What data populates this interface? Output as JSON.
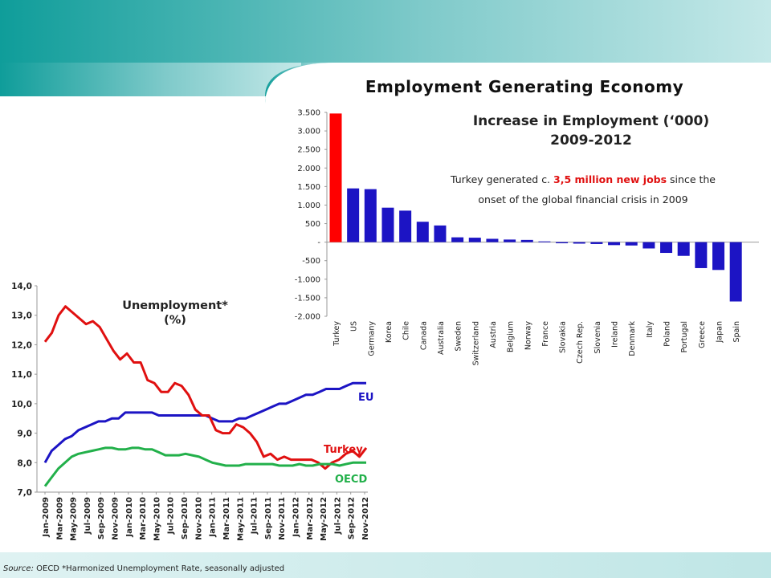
{
  "slide": {
    "title": "Employment Generating Economy",
    "source_label": "Source:",
    "source_text": "OECD *Harmonized Unemployment Rate, seasonally adjusted",
    "colors": {
      "header_teal": "#0f9d9a",
      "header_light": "#bfe6e6"
    }
  },
  "chart_data": [
    {
      "type": "bar",
      "title": "Increase in Employment (‘000)",
      "subtitle": "2009-2012",
      "annotation": {
        "pre": "Turkey generated c. ",
        "highlight": "3,5 million new jobs",
        "post": " since the",
        "line2": "onset of the global financial crisis in 2009"
      },
      "categories": [
        "Turkey",
        "US",
        "Germany",
        "Korea",
        "Chile",
        "Canada",
        "Australia",
        "Sweden",
        "Switzerland",
        "Austria",
        "Belgium",
        "Norway",
        "France",
        "Slovakia",
        "Czech Rep.",
        "Slovenia",
        "Ireland",
        "Denmark",
        "Italy",
        "Poland",
        "Portugal",
        "Greece",
        "Japan",
        "Spain"
      ],
      "values": [
        3470,
        1450,
        1430,
        930,
        850,
        550,
        450,
        130,
        120,
        90,
        70,
        60,
        20,
        -30,
        -40,
        -50,
        -80,
        -90,
        -170,
        -290,
        -370,
        -700,
        -750,
        -1600
      ],
      "ylim": [
        -2000,
        3500
      ],
      "yticks": [
        3500,
        3000,
        2500,
        2000,
        1500,
        1000,
        500,
        0,
        -500,
        -1000,
        -1500,
        -2000
      ],
      "ytick_labels": [
        "3.500",
        "3.000",
        "2.500",
        "2.000",
        "1.500",
        "1.000",
        "500",
        "-",
        "-500",
        "-1.000",
        "-1.500",
        "-2.000"
      ],
      "colors": {
        "highlight": "#ff0000",
        "default": "#1c14c4"
      }
    },
    {
      "type": "line",
      "title": "Unemployment*",
      "subtitle": "(%)",
      "ylim": [
        7.0,
        14.0
      ],
      "yticks": [
        "14,0",
        "13,0",
        "12,0",
        "11,0",
        "10,0",
        "9,0",
        "8,0",
        "7,0"
      ],
      "x_tick_labels": [
        "Jan-2009",
        "Mar-2009",
        "May-2009",
        "Jul-2009",
        "Sep-2009",
        "Nov-2009",
        "Jan-2010",
        "Mar-2010",
        "May-2010",
        "Jul-2010",
        "Sep-2010",
        "Nov-2010",
        "Jan-2011",
        "Mar-2011",
        "May-2011",
        "Jul-2011",
        "Sep-2011",
        "Nov-2011",
        "Jan-2012",
        "Mar-2012",
        "May-2012",
        "Jul-2012",
        "Sep-2012",
        "Nov-2012"
      ],
      "series": [
        {
          "name": "EU",
          "color": "#1c14c4",
          "values": [
            8.0,
            8.4,
            8.6,
            8.8,
            8.9,
            9.1,
            9.2,
            9.3,
            9.4,
            9.4,
            9.5,
            9.5,
            9.7,
            9.7,
            9.7,
            9.7,
            9.7,
            9.6,
            9.6,
            9.6,
            9.6,
            9.6,
            9.6,
            9.6,
            9.6,
            9.5,
            9.4,
            9.4,
            9.4,
            9.5,
            9.5,
            9.6,
            9.7,
            9.8,
            9.9,
            10.0,
            10.0,
            10.1,
            10.2,
            10.3,
            10.3,
            10.4,
            10.5,
            10.5,
            10.5,
            10.6,
            10.7,
            10.7,
            10.7
          ]
        },
        {
          "name": "Turkey",
          "color": "#e01010",
          "values": [
            12.1,
            12.4,
            13.0,
            13.3,
            13.1,
            12.9,
            12.7,
            12.8,
            12.6,
            12.2,
            11.8,
            11.5,
            11.7,
            11.4,
            11.4,
            10.8,
            10.7,
            10.4,
            10.4,
            10.7,
            10.6,
            10.3,
            9.8,
            9.6,
            9.6,
            9.1,
            9.0,
            9.0,
            9.3,
            9.2,
            9.0,
            8.7,
            8.2,
            8.3,
            8.1,
            8.2,
            8.1,
            8.1,
            8.1,
            8.1,
            8.0,
            7.8,
            8.0,
            8.1,
            8.3,
            8.4,
            8.2,
            8.5
          ]
        },
        {
          "name": "OECD",
          "color": "#22b04a",
          "values": [
            7.2,
            7.5,
            7.8,
            8.0,
            8.2,
            8.3,
            8.35,
            8.4,
            8.45,
            8.5,
            8.5,
            8.45,
            8.45,
            8.5,
            8.5,
            8.45,
            8.45,
            8.35,
            8.25,
            8.25,
            8.25,
            8.3,
            8.25,
            8.2,
            8.1,
            8.0,
            7.95,
            7.9,
            7.9,
            7.9,
            7.95,
            7.95,
            7.95,
            7.95,
            7.95,
            7.9,
            7.9,
            7.9,
            7.95,
            7.9,
            7.9,
            7.95,
            7.95,
            7.95,
            7.9,
            7.95,
            8.0,
            8.0,
            8.0
          ]
        }
      ]
    }
  ]
}
